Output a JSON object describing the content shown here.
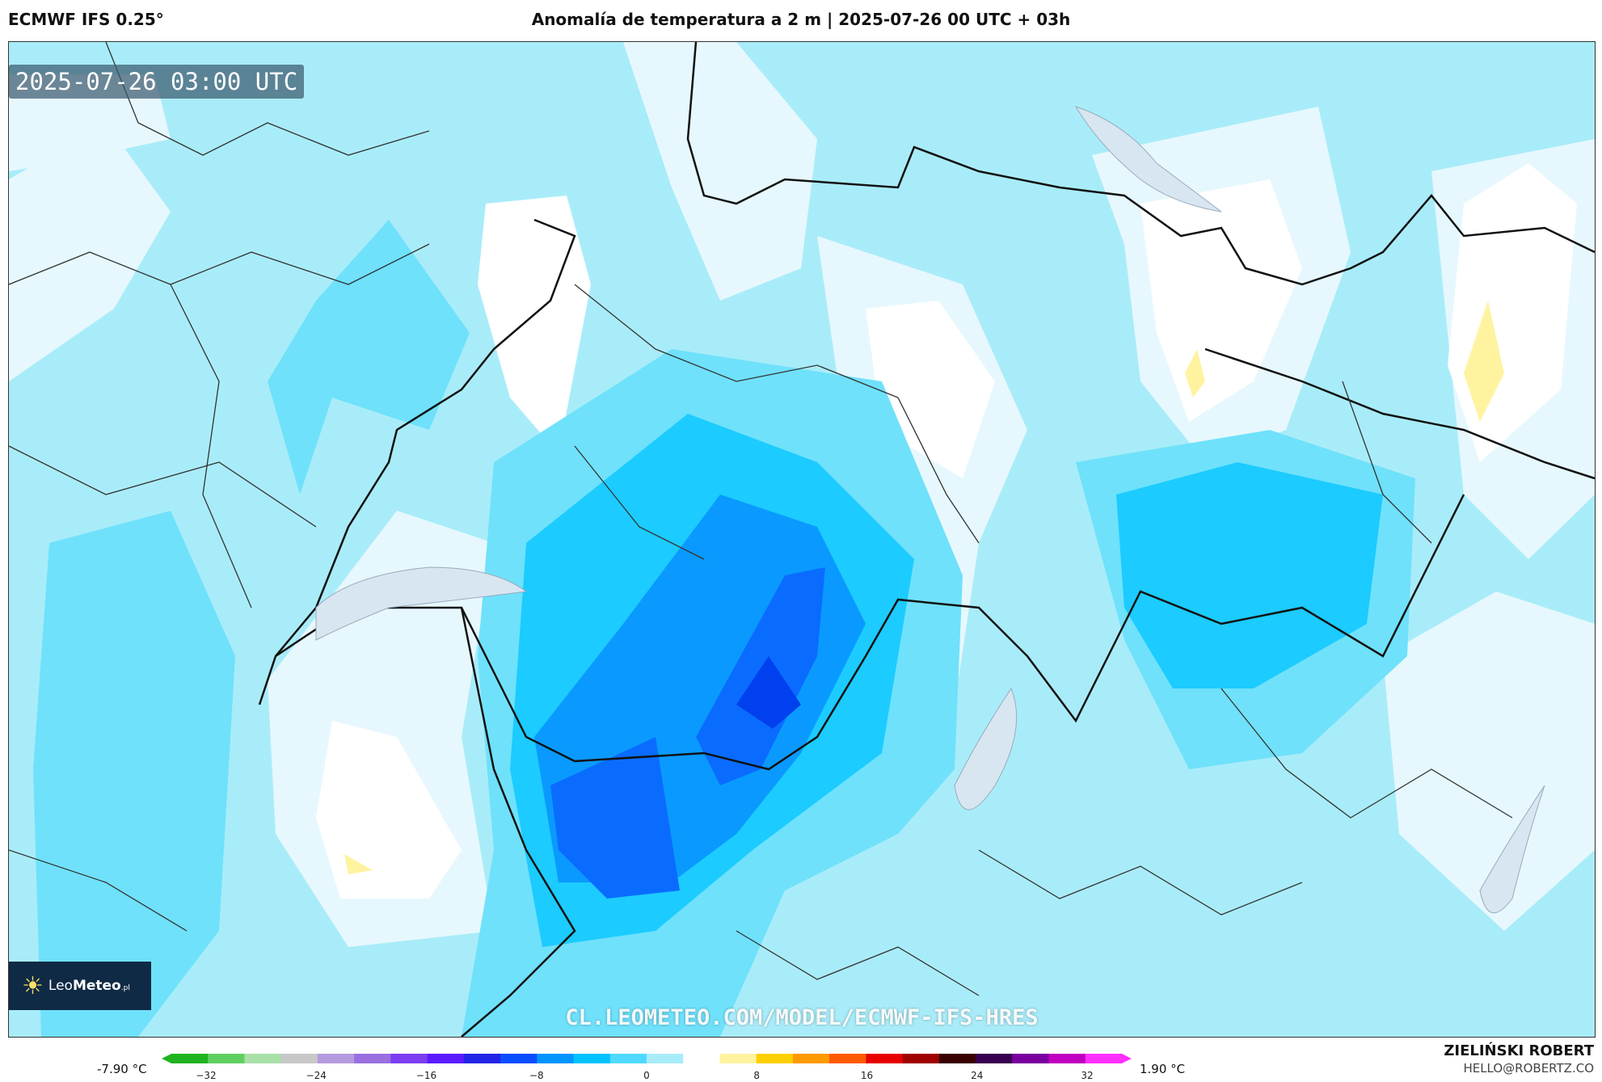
{
  "header": {
    "model": "ECMWF IFS 0.25°",
    "title": "Anomalía de temperatura a 2 m | 2025-07-26 00 UTC + 03h"
  },
  "map": {
    "valid_time": "2025-07-26 03:00 UTC",
    "watermark": "CL.LEOMETEO.COM/MODEL/ECMWF-IFS-HRES",
    "logo": {
      "brand_light": "Leo",
      "brand_bold": "Meteo",
      "suffix": ".pl"
    }
  },
  "legend": {
    "min_label": "-7.90 °C",
    "max_label": "1.90 °C",
    "ticks": [
      "−32",
      "−24",
      "−16",
      "−8",
      "0",
      "8",
      "16",
      "24",
      "32"
    ],
    "colors": [
      "#1fb41f",
      "#5fd05f",
      "#a8e0a8",
      "#c8c8c8",
      "#b49be0",
      "#9a6fe0",
      "#7d3df0",
      "#5a1bff",
      "#2323e6",
      "#0a4cff",
      "#0095ff",
      "#00c2ff",
      "#4fd9ff",
      "#a9ecf9",
      "#ffffff",
      "#fff3a0",
      "#ffd000",
      "#ff9a00",
      "#ff5a00",
      "#e60000",
      "#a00000",
      "#3a0000",
      "#3a0050",
      "#7a00a0",
      "#c000c0",
      "#ff30ff"
    ]
  },
  "footer": {
    "author": "ZIELIŃSKI ROBERT",
    "email": "HELLO@ROBERTZ.CO"
  },
  "palette": {
    "light_blue": "#a9ecf9",
    "pale": "#e6f8fd",
    "mid_blue": "#4fd9ff",
    "cyan": "#00c2ff",
    "blue": "#0a8cff",
    "deep_blue": "#0a4cff",
    "yellow": "#fff3a0",
    "white": "#ffffff"
  }
}
